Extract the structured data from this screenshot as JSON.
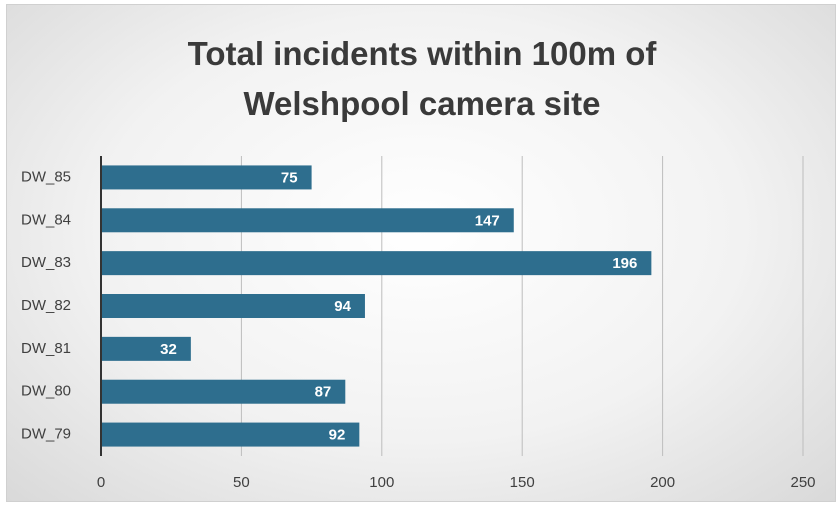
{
  "chart_data": {
    "type": "bar",
    "orientation": "horizontal",
    "title": "Total incidents within 100m of Welshpool camera site",
    "categories": [
      "DW_85",
      "DW_84",
      "DW_83",
      "DW_82",
      "DW_81",
      "DW_80",
      "DW_79"
    ],
    "values": [
      75,
      147,
      196,
      94,
      32,
      87,
      92
    ],
    "color": "#2e6e8e",
    "xlim": [
      0,
      250
    ],
    "xticks": [
      0,
      50,
      100,
      150,
      200,
      250
    ],
    "grid": true
  }
}
